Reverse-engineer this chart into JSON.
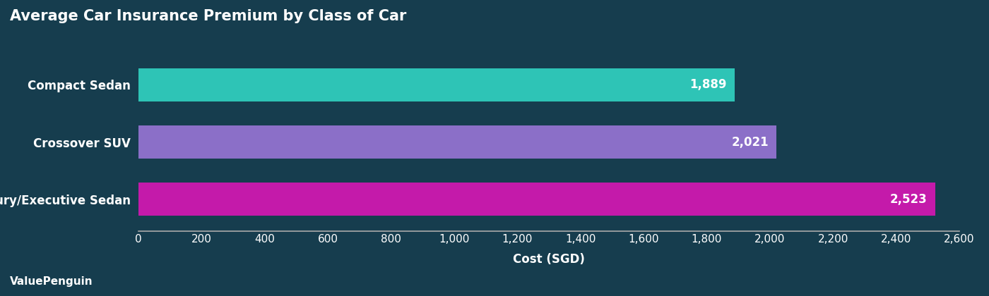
{
  "title": "Average Car Insurance Premium by Class of Car",
  "categories": [
    "Luxury/Executive Sedan",
    "Crossover SUV",
    "Compact Sedan"
  ],
  "values": [
    2523,
    2021,
    1889
  ],
  "bar_colors": [
    "#c41aaa",
    "#8b6fc8",
    "#2ec4b6"
  ],
  "bar_labels": [
    "2,523",
    "2,021",
    "1,889"
  ],
  "xlabel": "Cost (SGD)",
  "xlim": [
    0,
    2600
  ],
  "xticks": [
    0,
    200,
    400,
    600,
    800,
    1000,
    1200,
    1400,
    1600,
    1800,
    2000,
    2200,
    2400,
    2600
  ],
  "background_color": "#163d4e",
  "text_color": "#ffffff",
  "title_fontsize": 15,
  "label_fontsize": 12,
  "tick_fontsize": 11,
  "bar_height": 0.58,
  "watermark": "ValuePenguin",
  "watermark_fontsize": 11
}
